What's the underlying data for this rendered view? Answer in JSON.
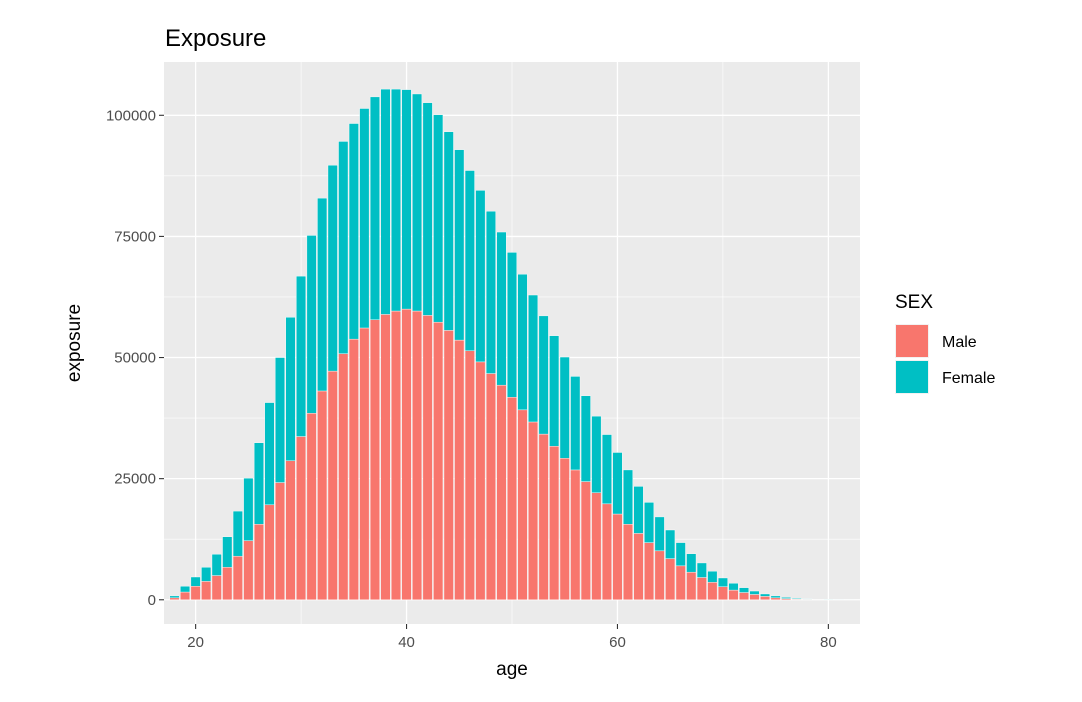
{
  "chart_data": {
    "type": "bar",
    "stacked": true,
    "title": "Exposure",
    "xlabel": "age",
    "ylabel": "exposure",
    "xlim": [
      17,
      83
    ],
    "ylim": [
      -5000,
      111000
    ],
    "x_ticks": [
      20,
      40,
      60,
      80
    ],
    "y_ticks": [
      0,
      25000,
      50000,
      75000,
      100000
    ],
    "grid": true,
    "legend_position": "right",
    "legend_title": "SEX",
    "x": [
      18,
      19,
      20,
      21,
      22,
      23,
      24,
      25,
      26,
      27,
      28,
      29,
      30,
      31,
      32,
      33,
      34,
      35,
      36,
      37,
      38,
      39,
      40,
      41,
      42,
      43,
      44,
      45,
      46,
      47,
      48,
      49,
      50,
      51,
      52,
      53,
      54,
      55,
      56,
      57,
      58,
      59,
      60,
      61,
      62,
      63,
      64,
      65,
      66,
      67,
      68,
      69,
      70,
      71,
      72,
      73,
      74,
      75,
      76,
      77,
      78,
      79,
      80,
      81,
      82
    ],
    "series": [
      {
        "name": "Male",
        "color": "#F8766D",
        "values": [
          400,
          1600,
          2800,
          3800,
          5000,
          6700,
          9000,
          12200,
          15600,
          19600,
          24200,
          28700,
          33700,
          38500,
          43100,
          47200,
          50800,
          53800,
          56100,
          57800,
          58900,
          59600,
          60000,
          59600,
          58700,
          57300,
          55600,
          53600,
          51400,
          49100,
          46700,
          44300,
          41800,
          39200,
          36700,
          34200,
          31700,
          29200,
          26800,
          24400,
          22100,
          19800,
          17700,
          15600,
          13700,
          11800,
          10100,
          8500,
          7000,
          5700,
          4600,
          3600,
          2700,
          2000,
          1500,
          1100,
          700,
          400,
          250,
          150,
          100,
          50,
          30,
          20,
          10
        ]
      },
      {
        "name": "Female",
        "color": "#00BFC4",
        "values": [
          400,
          1200,
          1900,
          2900,
          4400,
          6300,
          9300,
          12900,
          16800,
          21100,
          25800,
          29600,
          33100,
          36700,
          39800,
          42500,
          43800,
          44500,
          45300,
          46000,
          46500,
          45800,
          45300,
          44800,
          43900,
          42800,
          41000,
          39300,
          37200,
          35400,
          33500,
          31600,
          29900,
          28000,
          26200,
          24400,
          22800,
          20900,
          19300,
          17700,
          15800,
          14300,
          12700,
          11200,
          9700,
          8300,
          7000,
          5900,
          4800,
          3800,
          3000,
          2300,
          1800,
          1400,
          1000,
          700,
          500,
          400,
          250,
          150,
          100,
          50,
          30,
          20,
          10
        ]
      }
    ]
  }
}
